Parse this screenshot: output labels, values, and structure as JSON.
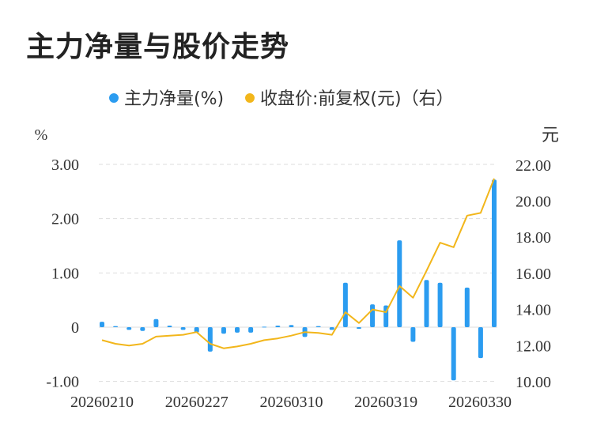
{
  "title": "主力净量与股价走势",
  "colors": {
    "bar": "#2b9cf0",
    "line": "#f2b61b",
    "grid": "#dddddd",
    "text": "#333333"
  },
  "chart_data": {
    "type": "bar",
    "title": "主力净量与股价走势",
    "legend_position": "top",
    "left_axis": {
      "unit": "%",
      "ylim": [
        -1.0,
        3.0
      ],
      "ticks": [
        "-1.00",
        "0",
        "1.00",
        "2.00",
        "3.00"
      ]
    },
    "right_axis": {
      "unit": "元",
      "ylim": [
        10.0,
        22.0
      ],
      "ticks": [
        "10.00",
        "12.00",
        "14.00",
        "16.00",
        "18.00",
        "20.00",
        "22.00"
      ]
    },
    "x_tick_labels": [
      "20260210",
      "20260227",
      "20260310",
      "20260319",
      "20260330"
    ],
    "series": [
      {
        "name": "主力净量(%)",
        "type": "bar",
        "axis": "left",
        "values": [
          0.1,
          0.02,
          -0.05,
          -0.07,
          0.15,
          0.03,
          -0.05,
          -0.1,
          -0.45,
          -0.12,
          -0.1,
          -0.1,
          0.01,
          0.03,
          0.04,
          -0.18,
          0.02,
          -0.05,
          0.82,
          -0.03,
          0.42,
          0.4,
          1.6,
          -0.27,
          0.87,
          0.82,
          -0.98,
          0.73,
          -0.57,
          2.72
        ]
      },
      {
        "name": "收盘价:前复权(元)（右）",
        "type": "line",
        "axis": "right",
        "values": [
          12.3,
          12.1,
          12.0,
          12.1,
          12.5,
          12.55,
          12.6,
          12.75,
          12.1,
          11.85,
          11.95,
          12.1,
          12.3,
          12.4,
          12.55,
          12.75,
          12.7,
          12.6,
          13.85,
          13.25,
          14.0,
          13.85,
          15.3,
          14.65,
          16.15,
          17.7,
          17.45,
          19.2,
          19.35,
          21.25
        ]
      }
    ]
  }
}
